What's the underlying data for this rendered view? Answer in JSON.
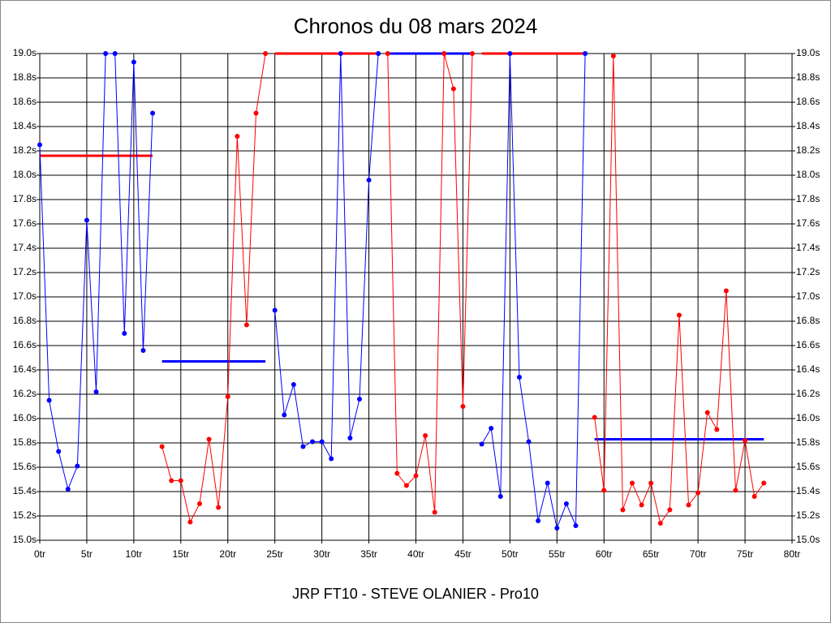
{
  "chart_data": {
    "type": "line",
    "title": "Chronos du 08 mars 2024",
    "subtitle": "JRP FT10 - STEVE OLANIER - Pro10",
    "x": [
      0,
      1,
      2,
      3,
      4,
      5,
      6,
      7,
      8,
      9,
      10,
      11,
      12,
      13,
      14,
      15,
      16,
      17,
      18,
      19,
      20,
      21,
      22,
      23,
      24,
      25,
      26,
      27,
      28,
      29,
      30,
      31,
      32,
      33,
      34,
      35,
      36,
      37,
      38,
      39,
      40,
      41,
      42,
      43,
      44,
      45,
      46,
      47,
      48,
      49,
      50,
      51,
      52,
      53,
      54,
      55,
      56,
      57,
      58,
      59,
      60,
      61,
      62,
      63,
      64,
      65,
      66,
      67,
      68,
      69,
      70,
      71,
      72,
      73,
      74,
      75,
      76,
      77
    ],
    "series": [
      {
        "color": "#0000ff",
        "values": [
          18.25,
          16.15,
          15.73,
          15.42,
          15.61,
          17.63,
          16.22,
          19.0,
          19.0,
          16.7,
          18.93,
          16.56,
          18.51,
          null,
          null,
          null,
          null,
          null,
          null,
          null,
          null,
          null,
          null,
          null,
          null,
          16.89,
          16.03,
          16.28,
          15.77,
          15.81,
          15.81,
          15.67,
          19.0,
          15.84,
          16.16,
          17.96,
          19.0,
          null,
          null,
          null,
          null,
          null,
          null,
          null,
          null,
          null,
          null,
          15.79,
          15.92,
          15.36,
          19.0,
          16.34,
          15.81,
          15.16,
          15.47,
          15.1,
          15.3,
          15.12,
          19.0,
          null,
          null,
          null,
          null,
          null,
          null,
          null,
          null,
          null,
          null,
          null,
          null,
          null,
          null,
          null,
          null,
          null,
          null,
          null
        ]
      },
      {
        "color": "#ff0000",
        "values": [
          null,
          null,
          null,
          null,
          null,
          null,
          null,
          null,
          null,
          null,
          null,
          null,
          null,
          15.77,
          15.49,
          15.49,
          15.15,
          15.3,
          15.83,
          15.27,
          16.18,
          18.32,
          16.77,
          18.51,
          19.0,
          null,
          null,
          null,
          null,
          null,
          null,
          null,
          null,
          null,
          null,
          null,
          null,
          19.0,
          15.55,
          15.45,
          15.53,
          15.86,
          15.23,
          19.0,
          18.71,
          16.1,
          19.0,
          null,
          null,
          null,
          null,
          null,
          null,
          null,
          null,
          null,
          null,
          null,
          null,
          16.01,
          15.41,
          18.98,
          15.25,
          15.47,
          15.29,
          15.47,
          15.14,
          15.25,
          16.85,
          15.29,
          15.39,
          16.05,
          15.91,
          17.05,
          15.41,
          15.82,
          15.36,
          15.47
        ]
      }
    ],
    "averages": [
      {
        "color": "#ff0000",
        "values": [
          18.16,
          18.16,
          18.16,
          18.16,
          18.16,
          18.16,
          18.16,
          18.16,
          18.16,
          18.16,
          18.16,
          18.16,
          18.16,
          null,
          null,
          null,
          null,
          null,
          null,
          null,
          null,
          null,
          null,
          null,
          null,
          19.0,
          19.0,
          19.0,
          19.0,
          19.0,
          19.0,
          19.0,
          19.0,
          19.0,
          19.0,
          19.0,
          19.0,
          null,
          null,
          null,
          null,
          null,
          null,
          null,
          null,
          null,
          null,
          19.0,
          19.0,
          19.0,
          19.0,
          19.0,
          19.0,
          19.0,
          19.0,
          19.0,
          19.0,
          19.0,
          19.0,
          null,
          null,
          null,
          null,
          null,
          null,
          null,
          null,
          null,
          null,
          null,
          null,
          null,
          null,
          null,
          null,
          null,
          null,
          null
        ]
      },
      {
        "color": "#0000ff",
        "values": [
          null,
          null,
          null,
          null,
          null,
          null,
          null,
          null,
          null,
          null,
          null,
          null,
          null,
          16.47,
          16.47,
          16.47,
          16.47,
          16.47,
          16.47,
          16.47,
          16.47,
          16.47,
          16.47,
          16.47,
          16.47,
          null,
          null,
          null,
          null,
          null,
          null,
          null,
          null,
          null,
          null,
          null,
          null,
          19.0,
          19.0,
          19.0,
          19.0,
          19.0,
          19.0,
          19.0,
          19.0,
          19.0,
          19.0,
          null,
          null,
          null,
          null,
          null,
          null,
          null,
          null,
          null,
          null,
          null,
          null,
          15.83,
          15.83,
          15.83,
          15.83,
          15.83,
          15.83,
          15.83,
          15.83,
          15.83,
          15.83,
          15.83,
          15.83,
          15.83,
          15.83,
          15.83,
          15.83,
          15.83,
          15.83,
          15.83
        ]
      }
    ],
    "xlim": [
      0,
      80
    ],
    "xticks": [
      {
        "value": 0,
        "label": "0tr"
      },
      {
        "value": 5,
        "label": "5tr"
      },
      {
        "value": 10,
        "label": "10tr"
      },
      {
        "value": 15,
        "label": "15tr"
      },
      {
        "value": 20,
        "label": "20tr"
      },
      {
        "value": 25,
        "label": "25tr"
      },
      {
        "value": 30,
        "label": "30tr"
      },
      {
        "value": 35,
        "label": "35tr"
      },
      {
        "value": 40,
        "label": "40tr"
      },
      {
        "value": 45,
        "label": "45tr"
      },
      {
        "value": 50,
        "label": "50tr"
      },
      {
        "value": 55,
        "label": "55tr"
      },
      {
        "value": 60,
        "label": "60tr"
      },
      {
        "value": 65,
        "label": "65tr"
      },
      {
        "value": 70,
        "label": "70tr"
      },
      {
        "value": 75,
        "label": "75tr"
      },
      {
        "value": 80,
        "label": "80tr"
      }
    ],
    "ylim": [
      15.0,
      19.0
    ],
    "yticks": [
      {
        "value": 15.0,
        "label": "15.0s"
      },
      {
        "value": 15.2,
        "label": "15.2s"
      },
      {
        "value": 15.4,
        "label": "15.4s"
      },
      {
        "value": 15.6,
        "label": "15.6s"
      },
      {
        "value": 15.8,
        "label": "15.8s"
      },
      {
        "value": 16.0,
        "label": "16.0s"
      },
      {
        "value": 16.2,
        "label": "16.2s"
      },
      {
        "value": 16.4,
        "label": "16.4s"
      },
      {
        "value": 16.6,
        "label": "16.6s"
      },
      {
        "value": 16.8,
        "label": "16.8s"
      },
      {
        "value": 17.0,
        "label": "17.0s"
      },
      {
        "value": 17.2,
        "label": "17.2s"
      },
      {
        "value": 17.4,
        "label": "17.4s"
      },
      {
        "value": 17.6,
        "label": "17.6s"
      },
      {
        "value": 17.8,
        "label": "17.8s"
      },
      {
        "value": 18.0,
        "label": "18.0s"
      },
      {
        "value": 18.2,
        "label": "18.2s"
      },
      {
        "value": 18.4,
        "label": "18.4s"
      },
      {
        "value": 18.6,
        "label": "18.6s"
      },
      {
        "value": 18.8,
        "label": "18.8s"
      },
      {
        "value": 19.0,
        "label": "19.0s"
      }
    ],
    "grid": true
  }
}
